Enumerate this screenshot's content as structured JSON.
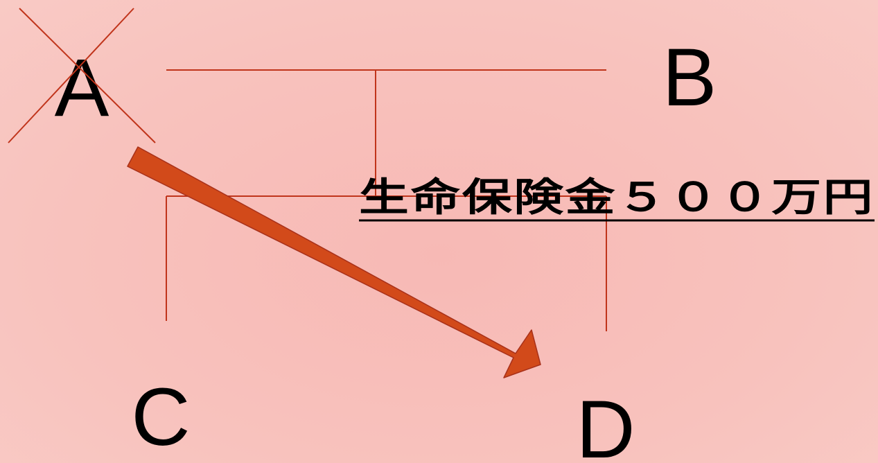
{
  "persons": {
    "a": "A",
    "b": "B",
    "c": "C",
    "d": "D"
  },
  "insurance_label": "生命保険金５００万円",
  "colors": {
    "background": "#f8c2bd",
    "lines": "#c0341b",
    "arrow_fill": "#d24a1a",
    "arrow_outline": "#a8311a",
    "text": "#000000"
  }
}
